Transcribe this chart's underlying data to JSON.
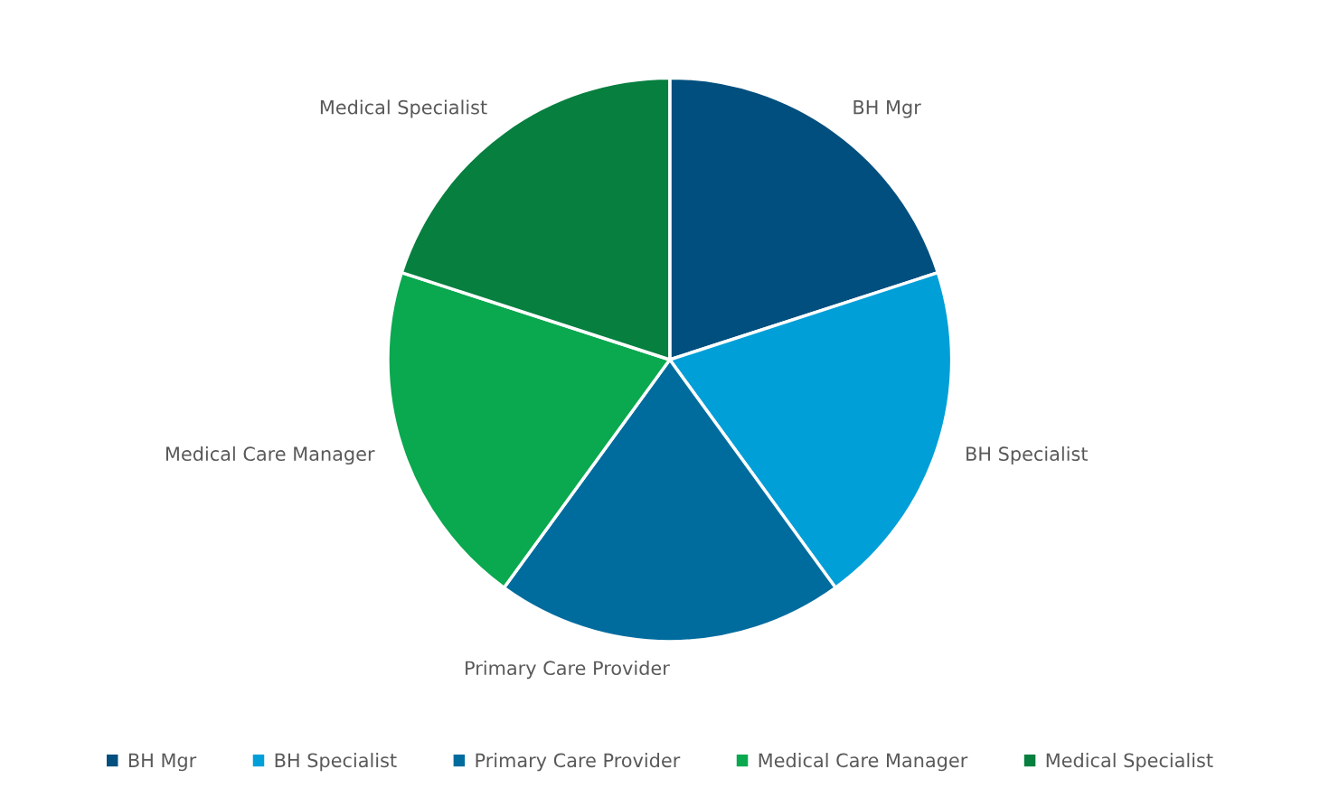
{
  "chart_data": {
    "type": "pie",
    "categories": [
      "BH Mgr",
      "BH Specialist",
      "Primary Care Provider",
      "Medical Care Manager",
      "Medical Specialist"
    ],
    "values": [
      20,
      20,
      20,
      20,
      20
    ],
    "colors": [
      "#004f7e",
      "#009fd8",
      "#006c9e",
      "#0aa84f",
      "#067f3f"
    ],
    "legend": "bottom"
  }
}
